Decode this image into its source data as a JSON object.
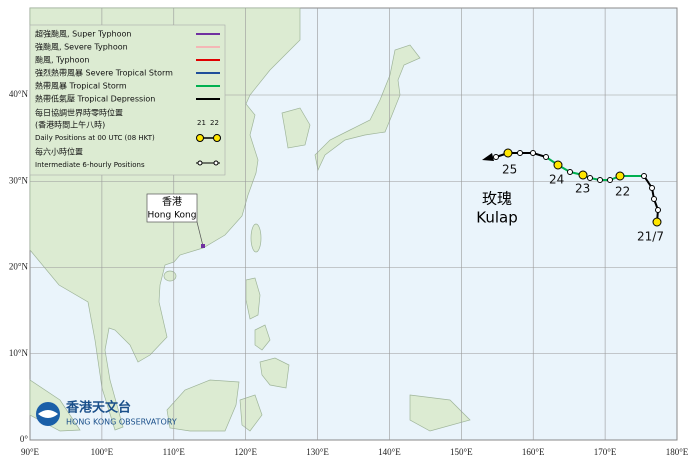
{
  "legend": {
    "items": [
      "超強颱風, Super Typhoon",
      "強颱風, Severe Typhoon",
      "颱風, Typhoon",
      "強烈熱帶風暴 Severe Tropical Storm",
      "熱帶風暴 Tropical Storm",
      "熱帶低氣壓  Tropical Depression"
    ],
    "daily_cn": [
      "每日協調世界時零時位置",
      "(香港時間上午八時)"
    ],
    "daily_sample": [
      "21",
      "22"
    ],
    "daily_en": "Daily Positions at 00 UTC (08 HKT)",
    "six_hourly_cn": "每六小時位置",
    "six_hourly_en": "Intermediate 6-hourly Positions"
  },
  "place": {
    "name_cn": "香港",
    "name_en": "Hong Kong"
  },
  "storm": {
    "name_cn": "玫瑰",
    "name_en": "Kulap",
    "day_labels": [
      "25",
      "24",
      "23",
      "22",
      "21/7"
    ]
  },
  "axes": {
    "x_labels": [
      "90°E",
      "100°E",
      "110°E",
      "120°E",
      "130°E",
      "140°E",
      "150°E",
      "160°E",
      "170°E",
      "180°E"
    ],
    "y_labels": [
      "40°N",
      "30°N",
      "20°N",
      "10°N",
      "0°"
    ]
  },
  "logo": {
    "name_cn": "香港天文台",
    "name_en": "HONG KONG OBSERVATORY"
  }
}
